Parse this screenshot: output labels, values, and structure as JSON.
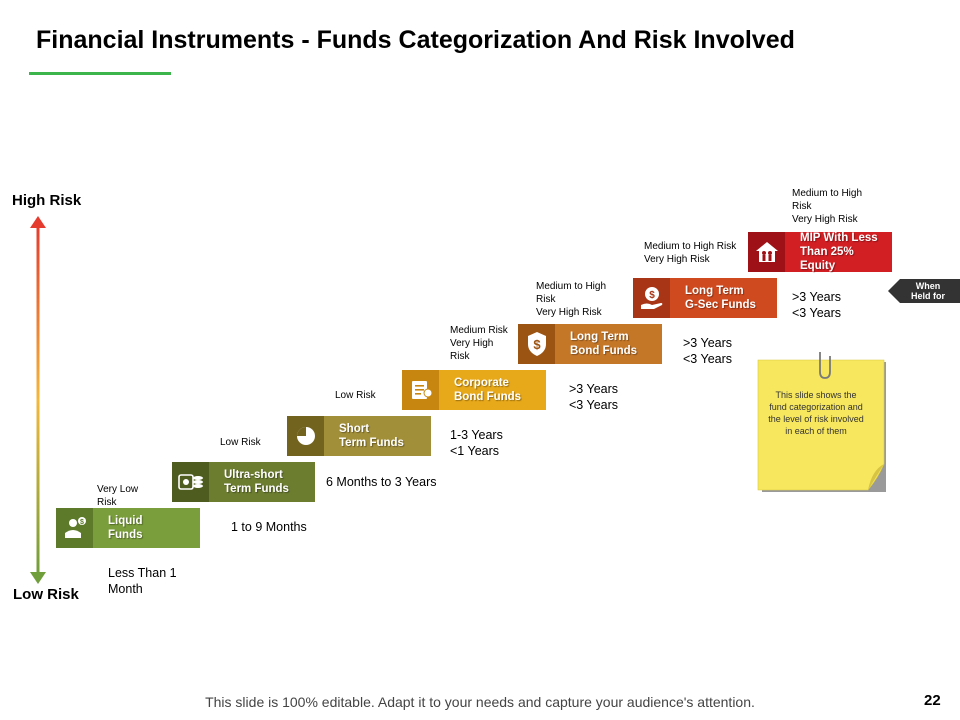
{
  "title": "Financial Instruments - Funds Categorization And Risk Involved",
  "axis": {
    "high": "High Risk",
    "low": "Low Risk"
  },
  "steps": [
    {
      "label": "Liquid\nFunds",
      "risk": "",
      "duration": "Less Than 1\nMonth",
      "icon": "person-dollar-icon",
      "color": "#7b9e3c",
      "icon_color": "#5c7a2a"
    },
    {
      "label": "Ultra-short\nTerm Funds",
      "risk": "Very Low\nRisk",
      "duration": "1 to 9 Months",
      "icon": "coins-icon",
      "color": "#6c7d30",
      "icon_color": "#4e5c1f"
    },
    {
      "label": "Short\nTerm Funds",
      "risk": "Low Risk",
      "duration": "6 Months to 3 Years",
      "icon": "pie-chart-icon",
      "color": "#a28f3a",
      "icon_color": "#72641f"
    },
    {
      "label": "Corporate\nBond Funds",
      "risk": "Low Risk",
      "duration": "1-3 Years\n<1 Years",
      "icon": "document-icon",
      "color": "#e7a81a",
      "icon_color": "#c7860f"
    },
    {
      "label": "Long Term\nBond Funds",
      "risk": "Medium Risk\nVery High\nRisk",
      "duration": ">3 Years\n<3 Years",
      "icon": "dollar-shield-icon",
      "color": "#c57728",
      "icon_color": "#9c5412"
    },
    {
      "label": "Long Term\nG-Sec Funds",
      "risk": "Medium to High\nRisk\nVery High Risk",
      "duration": ">3 Years\n<3 Years",
      "icon": "hand-coin-icon",
      "color": "#d04a1f",
      "icon_color": "#a83516"
    },
    {
      "label": "MIP With Less\nThan 25% Equity",
      "risk": "Medium to High Risk\nVery High Risk",
      "duration": ">3 Years\n<3 Years",
      "icon": "house-family-icon",
      "color": "#d21f24",
      "icon_color": "#9e1217"
    },
    {
      "label": "",
      "risk": "Medium to High\nRisk\nVery High Risk",
      "duration": "",
      "icon": "",
      "color": "",
      "icon_color": ""
    }
  ],
  "when_held": "When\nHeld for",
  "note": "This slide shows the fund categorization and the level of risk involved in each of them",
  "footer": "This slide is 100% editable. Adapt it to your needs and capture your audience's attention.",
  "page_number": "22",
  "colors": {
    "accent_line": "#3cb54a",
    "note_bg": "#f7e75f",
    "arrow_top": "#e53b2e",
    "arrow_mid": "#f4b83a",
    "arrow_bottom": "#6f9e3a"
  }
}
